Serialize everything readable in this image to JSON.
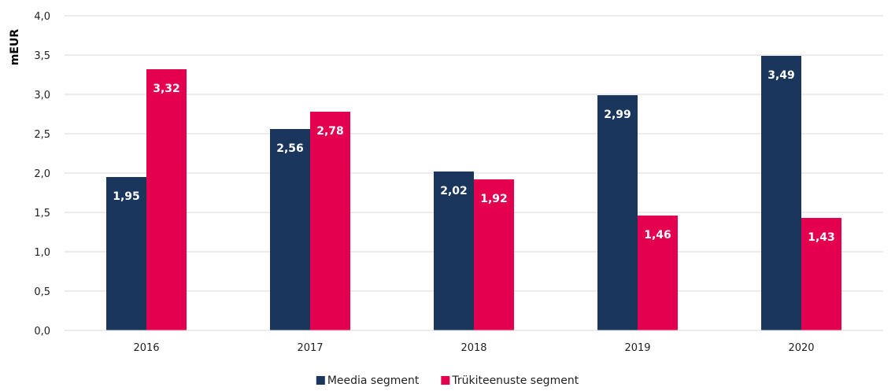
{
  "chart_data": {
    "type": "bar",
    "title": "",
    "xlabel": "",
    "ylabel": "mEUR",
    "categories": [
      "2016",
      "2017",
      "2018",
      "2019",
      "2020"
    ],
    "series": [
      {
        "name": "Meedia segment",
        "color": "#1b365d",
        "values": [
          1.95,
          2.56,
          2.02,
          2.99,
          3.49
        ]
      },
      {
        "name": "Trükiteenuste segment",
        "color": "#e4004f",
        "values": [
          3.32,
          2.78,
          1.92,
          1.46,
          1.43
        ]
      }
    ],
    "data_labels": [
      [
        "1,95",
        "2,56",
        "2,02",
        "2,99",
        "3,49"
      ],
      [
        "3,32",
        "2,78",
        "1,92",
        "1,46",
        "1,43"
      ]
    ],
    "ylim": [
      0,
      4
    ],
    "y_ticks": [
      0,
      0.5,
      1,
      1.5,
      2,
      2.5,
      3,
      3.5,
      4
    ],
    "y_tick_labels": [
      "0,0",
      "0,5",
      "1,0",
      "1,5",
      "2,0",
      "2,5",
      "3,0",
      "3,5",
      "4,0"
    ],
    "grid": true,
    "legend_position": "bottom-center"
  }
}
